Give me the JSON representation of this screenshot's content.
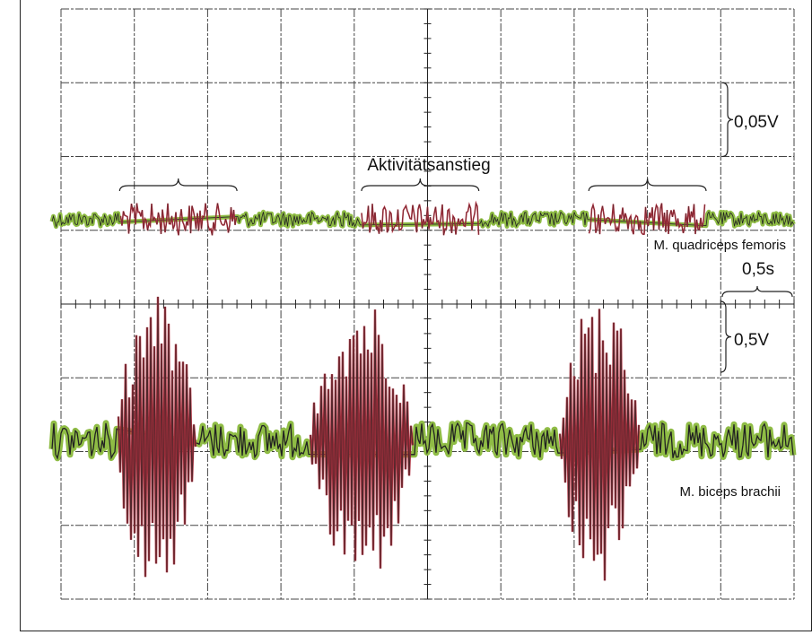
{
  "labels": {
    "activity_increase": "Aktivitätsanstieg",
    "channel1_name": "M. quadriceps femoris",
    "channel2_name": "M. biceps brachii",
    "scale_ch1": "0,05V",
    "scale_ch2": "0,5V",
    "scale_time": "0,5s"
  },
  "colors": {
    "baseline_trace": "#8fbc45",
    "activity_trace": "#b0303f",
    "overlay_trace": "#222222",
    "grid": "#444444"
  },
  "chart_data": {
    "type": "line",
    "title": "",
    "xlabel": "",
    "ylabel": "",
    "grid": true,
    "time_per_division_s": 0.5,
    "x_range_s": [
      0,
      5.0
    ],
    "series": [
      {
        "name": "M. quadriceps femoris",
        "volts_per_division": 0.05,
        "noise_amplitude_V": 0.005,
        "activity_amplitude_V": 0.011,
        "activity_intervals_s": [
          [
            0.4,
            1.2
          ],
          [
            2.05,
            2.85
          ],
          [
            3.6,
            4.4
          ]
        ],
        "annotation": "Aktivitätsanstieg"
      },
      {
        "name": "M. biceps brachii",
        "volts_per_division": 0.5,
        "noise_amplitude_V": 0.12,
        "burst_peak_amplitude_V": 1.0,
        "burst_intervals_s": [
          [
            0.38,
            0.92
          ],
          [
            1.7,
            2.4
          ],
          [
            3.4,
            3.95
          ]
        ]
      }
    ]
  }
}
